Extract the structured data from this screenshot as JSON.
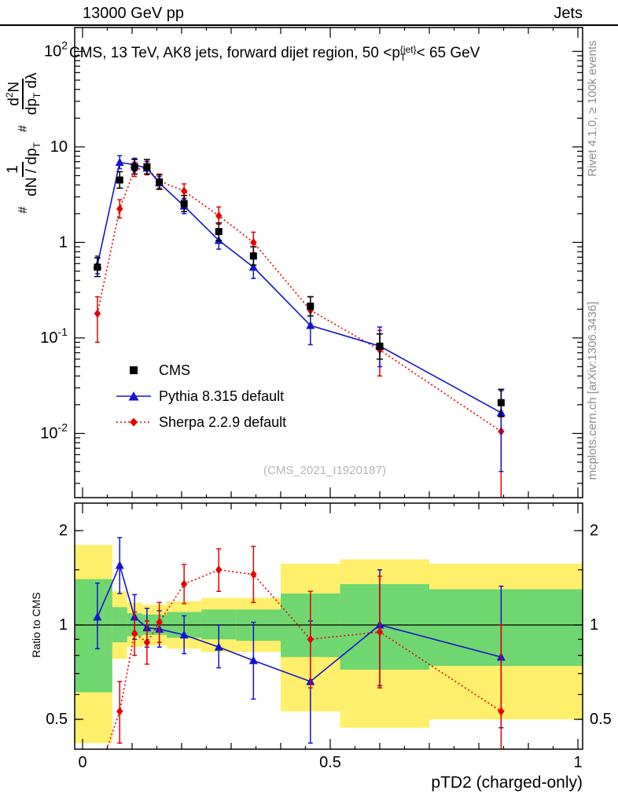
{
  "header": {
    "left": "13000 GeV pp",
    "right": "Jets"
  },
  "panel_title": {
    "prefix": "CMS, 13 TeV, AK8 jets, forward dijet region, 50 <",
    "symbol": "p",
    "sup": "{jet}",
    "sub": "T",
    "suffix": "< 65 GeV"
  },
  "ylabel_main": {
    "hash1": "#",
    "frac1_num": "1",
    "frac1_den": "dN / dp",
    "frac1_den_sub": "T",
    "hash2": "#",
    "frac2_num_base": "d",
    "frac2_num_exp": "2",
    "frac2_num_rest": "N",
    "frac2_den_base": "dp",
    "frac2_den_sub": "T",
    "frac2_den_rest": " dλ"
  },
  "ylabel_ratio": "Ratio to CMS",
  "watermark": "(CMS_2021_I1920187)",
  "credit_top": "Rivet 4.1.0, ≥ 100k events",
  "credit_bottom": "mcplots.cern.ch [arXiv:1306.3436]",
  "legend": [
    {
      "label": "CMS",
      "marker": "square",
      "color": "#000000",
      "line": "none"
    },
    {
      "label": "Pythia 8.315 default",
      "marker": "triangle",
      "color": "#1414cc",
      "line": "solid"
    },
    {
      "label": "Sherpa 2.2.9 default",
      "marker": "diamond",
      "color": "#e60000",
      "line": "dotted"
    }
  ],
  "chart_data": {
    "type": "line",
    "title": "CMS, 13 TeV, AK8 jets, forward dijet region, 50 < pT{jet} < 65 GeV",
    "xlabel": "pTD2 (charged-only)",
    "ylabel": "# 1/(dN/dpT) d²N/(dpT dλ)",
    "ratio_ylabel": "Ratio to CMS",
    "x_range": [
      0,
      1
    ],
    "y_scale": "log",
    "y_range": [
      0.00214,
      178
    ],
    "ratio_y_scale": "log",
    "ratio_y_range": [
      0.4,
      2.45
    ],
    "grid": false,
    "legend_position": "inside-left",
    "colors": {
      "band_outer": "#ffef6b",
      "band_inner": "#70d670"
    },
    "x": [
      0.03,
      0.075,
      0.105,
      0.13,
      0.155,
      0.205,
      0.275,
      0.345,
      0.46,
      0.6,
      0.845
    ],
    "series": [
      {
        "name": "CMS",
        "marker": "square",
        "color": "#000000",
        "line": "none",
        "values": [
          0.55,
          4.5,
          6.2,
          6.2,
          4.3,
          2.55,
          1.3,
          0.72,
          0.215,
          0.082,
          0.021
        ],
        "err_lo": [
          0.44,
          3.7,
          5.2,
          5.2,
          3.6,
          2.1,
          1.05,
          0.58,
          0.17,
          0.06,
          0.015
        ],
        "err_hi": [
          0.69,
          5.5,
          7.4,
          7.4,
          5.1,
          3.1,
          1.6,
          0.9,
          0.27,
          0.11,
          0.029
        ]
      },
      {
        "name": "Pythia 8.315 default",
        "marker": "triangle",
        "color": "#1414cc",
        "line": "solid",
        "values": [
          0.58,
          6.9,
          6.5,
          6.0,
          4.2,
          2.4,
          1.05,
          0.55,
          0.135,
          0.082,
          0.0165
        ],
        "err_lo": [
          0.47,
          5.9,
          5.6,
          5.2,
          3.6,
          2.0,
          0.85,
          0.42,
          0.085,
          0.05,
          0.004
        ],
        "err_hi": [
          0.72,
          8.1,
          7.6,
          7.0,
          4.9,
          2.85,
          1.3,
          0.72,
          0.21,
          0.13,
          0.028
        ]
      },
      {
        "name": "Sherpa 2.2.9 default",
        "marker": "diamond",
        "color": "#e60000",
        "line": "dotted",
        "values": [
          0.18,
          2.25,
          5.8,
          6.0,
          4.4,
          3.45,
          1.9,
          1.0,
          0.195,
          0.075,
          0.0105
        ],
        "err_lo": [
          0.09,
          1.8,
          4.9,
          5.1,
          3.7,
          2.9,
          1.55,
          0.78,
          0.14,
          0.04,
          0.001
        ],
        "err_hi": [
          0.27,
          2.8,
          6.9,
          7.1,
          5.2,
          4.1,
          2.35,
          1.28,
          0.27,
          0.12,
          0.02
        ]
      }
    ],
    "ratio": {
      "reference": "CMS",
      "series": [
        {
          "name": "Pythia 8.315 default",
          "values": [
            1.06,
            1.55,
            1.06,
            0.98,
            0.97,
            0.93,
            0.85,
            0.77,
            0.66,
            1.0,
            0.79
          ],
          "err_lo": [
            0.84,
            1.26,
            0.9,
            0.85,
            0.85,
            0.81,
            0.73,
            0.58,
            0.42,
            0.64,
            0.47
          ],
          "err_hi": [
            1.36,
            1.9,
            1.25,
            1.13,
            1.11,
            1.07,
            1.0,
            1.02,
            1.03,
            1.5,
            1.33
          ]
        },
        {
          "name": "Sherpa 2.2.9 default",
          "values": [
            0.33,
            0.53,
            0.94,
            0.88,
            1.02,
            1.35,
            1.5,
            1.45,
            0.9,
            0.95,
            0.53
          ],
          "err_lo": [
            0.2,
            0.42,
            0.8,
            0.75,
            0.88,
            1.17,
            1.28,
            1.18,
            0.63,
            0.63,
            0.28
          ],
          "err_hi": [
            0.4,
            0.66,
            1.1,
            1.03,
            1.18,
            1.56,
            1.75,
            1.78,
            1.28,
            1.43,
            1.0
          ]
        }
      ],
      "bands": [
        {
          "x0": 0.0,
          "x1": 0.06,
          "yellow": [
            0.42,
            1.8
          ],
          "green": [
            0.61,
            1.4
          ]
        },
        {
          "x0": 0.06,
          "x1": 0.09,
          "yellow": [
            0.78,
            1.28
          ],
          "green": [
            0.88,
            1.14
          ]
        },
        {
          "x0": 0.09,
          "x1": 0.12,
          "yellow": [
            0.85,
            1.18
          ],
          "green": [
            0.92,
            1.09
          ]
        },
        {
          "x0": 0.12,
          "x1": 0.14,
          "yellow": [
            0.86,
            1.16
          ],
          "green": [
            0.93,
            1.08
          ]
        },
        {
          "x0": 0.14,
          "x1": 0.17,
          "yellow": [
            0.86,
            1.16
          ],
          "green": [
            0.93,
            1.08
          ]
        },
        {
          "x0": 0.17,
          "x1": 0.24,
          "yellow": [
            0.84,
            1.19
          ],
          "green": [
            0.91,
            1.1
          ]
        },
        {
          "x0": 0.24,
          "x1": 0.31,
          "yellow": [
            0.82,
            1.22
          ],
          "green": [
            0.9,
            1.12
          ]
        },
        {
          "x0": 0.31,
          "x1": 0.4,
          "yellow": [
            0.82,
            1.22
          ],
          "green": [
            0.89,
            1.12
          ]
        },
        {
          "x0": 0.4,
          "x1": 0.52,
          "yellow": [
            0.53,
            1.57
          ],
          "green": [
            0.79,
            1.26
          ]
        },
        {
          "x0": 0.52,
          "x1": 0.7,
          "yellow": [
            0.47,
            1.62
          ],
          "green": [
            0.72,
            1.35
          ]
        },
        {
          "x0": 0.7,
          "x1": 1.0,
          "yellow": [
            0.5,
            1.57
          ],
          "green": [
            0.74,
            1.3
          ]
        }
      ]
    },
    "ticks": {
      "x": [
        {
          "v": 0,
          "label": "0"
        },
        {
          "v": 0.5,
          "label": "0.5"
        },
        {
          "v": 1,
          "label": "1"
        }
      ],
      "y_main": [
        {
          "v": 100,
          "base": "10",
          "exp": "2"
        },
        {
          "v": 10,
          "base": "10",
          "exp": ""
        },
        {
          "v": 1,
          "base": "1",
          "exp": ""
        },
        {
          "v": 0.1,
          "base": "10",
          "exp": "-1"
        },
        {
          "v": 0.01,
          "base": "10",
          "exp": "-2"
        }
      ],
      "y_ratio": [
        {
          "v": 2,
          "label": "2"
        },
        {
          "v": 1,
          "label": "1"
        },
        {
          "v": 0.5,
          "label": "0.5"
        }
      ],
      "y_ratio_minor": [
        0.5,
        0.6,
        0.7,
        0.8,
        0.9,
        1.5,
        2
      ]
    }
  }
}
